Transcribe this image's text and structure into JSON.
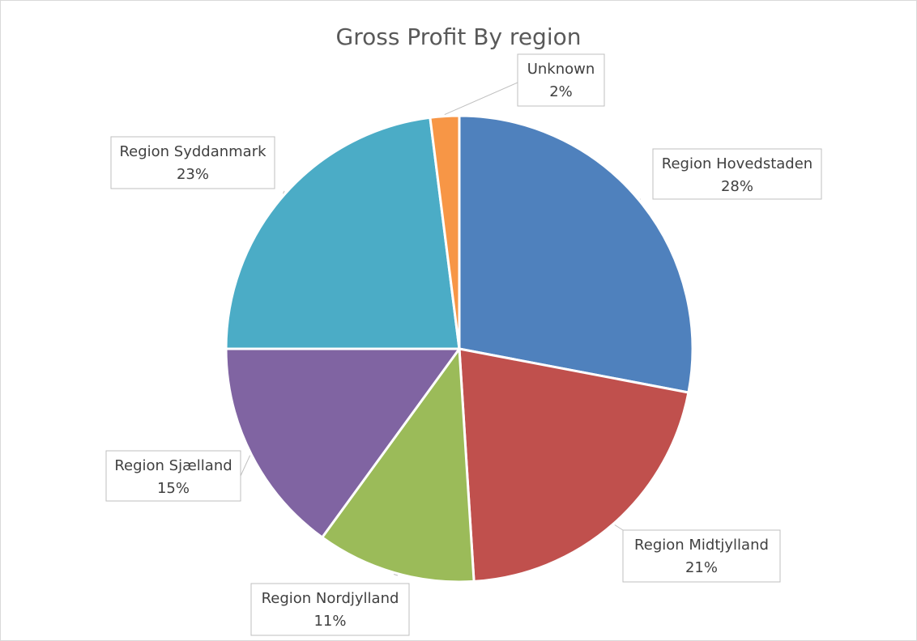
{
  "chart_data": {
    "type": "pie",
    "title": "Gross Profit By region",
    "slices": [
      {
        "name": "Region Hovedstaden",
        "value": 28,
        "label": "28%",
        "color": "#4F81BD"
      },
      {
        "name": "Region Midtjylland",
        "value": 21,
        "label": "21%",
        "color": "#C0504D"
      },
      {
        "name": "Region Nordjylland",
        "value": 11,
        "label": "11%",
        "color": "#9BBB59"
      },
      {
        "name": "Region Sjælland",
        "value": 15,
        "label": "15%",
        "color": "#8064A2"
      },
      {
        "name": "Region Syddanmark",
        "value": 23,
        "label": "23%",
        "color": "#4BACC6"
      },
      {
        "name": "Unknown",
        "value": 2,
        "label": "2%",
        "color": "#F79646"
      }
    ],
    "start": "12 o'clock, clockwise",
    "legend": "none (data labels with leader lines)"
  }
}
